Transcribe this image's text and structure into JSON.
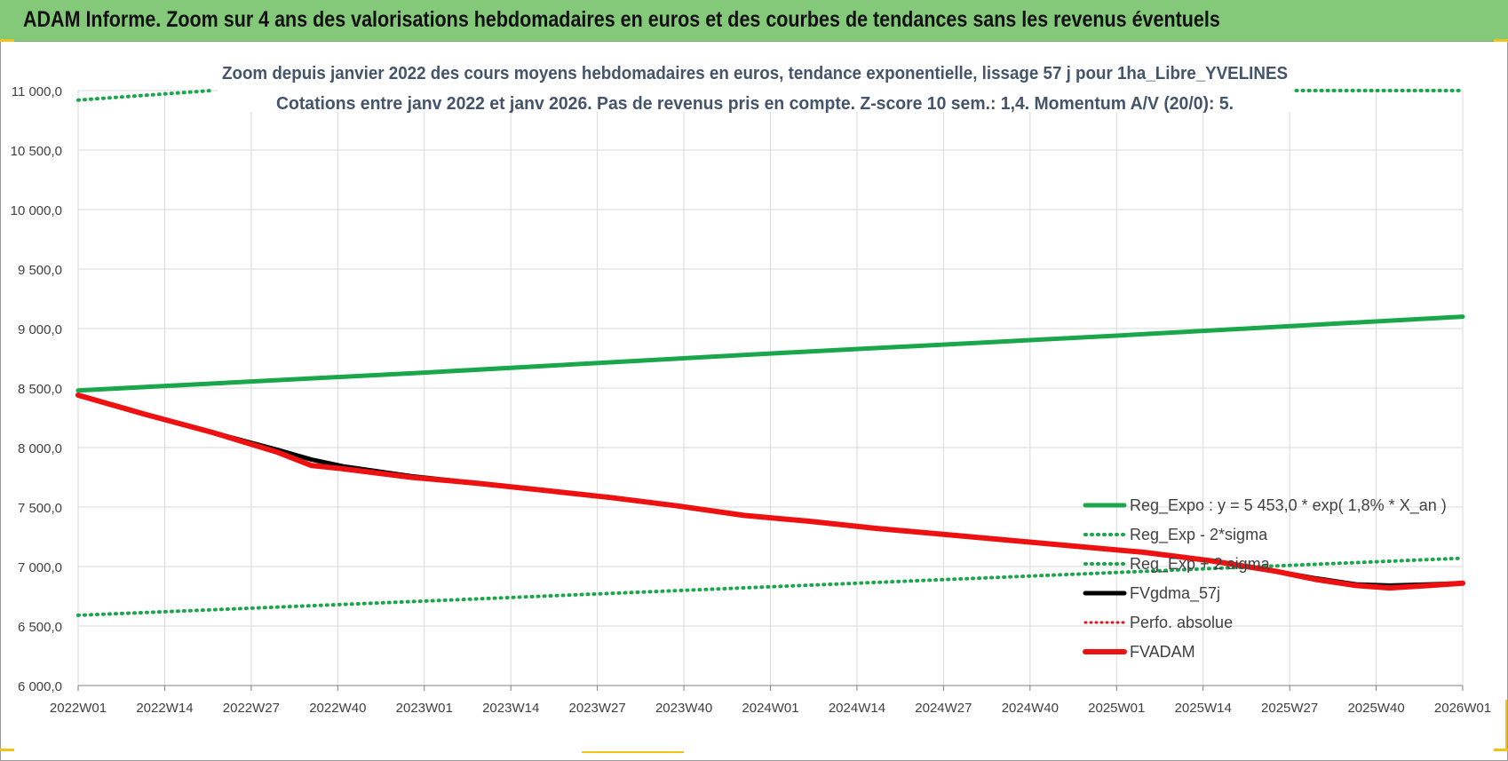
{
  "banner": {
    "title": "ADAM Informe. Zoom sur 4 ans des valorisations hebdomadaires en euros et des courbes de tendances sans les revenus éventuels"
  },
  "colors": {
    "banner": "#84c97a",
    "reg_expo": "#1aa64a",
    "fvgdma": "#000000",
    "fvadam": "#ee1111",
    "perfo": "#ee1111",
    "grid": "#d9d9d9",
    "accent": "#f3c219"
  },
  "chart_data": {
    "type": "line",
    "title_lines": [
      "Zoom depuis janvier 2022 des cours moyens hebdomadaires en euros, tendance exponentielle, lissage 57 j pour 1ha_Libre_YVELINES",
      "Cotations entre janv 2022 et janv 2026. Pas de revenus pris en compte. Z-score 10 sem.: 1,4. Momentum A/V (20/0): 5."
    ],
    "x_ticks": [
      "2022W01",
      "2022W14",
      "2022W27",
      "2022W40",
      "2023W01",
      "2023W14",
      "2023W27",
      "2023W40",
      "2024W01",
      "2024W14",
      "2024W27",
      "2024W40",
      "2025W01",
      "2025W14",
      "2025W27",
      "2025W40",
      "2026W01"
    ],
    "y_ticks": [
      "6 000,0",
      "6 500,0",
      "7 000,0",
      "7 500,0",
      "8 000,0",
      "8 500,0",
      "9 000,0",
      "9 500,0",
      "10 000,0",
      "10 500,0",
      "11 000,0"
    ],
    "ylim": [
      6000,
      11000
    ],
    "x_range_weeks": [
      0,
      208
    ],
    "grid": true,
    "legend_position": "bottom-right",
    "series": [
      {
        "name": "Reg_Expo : y = 5 453,0 * exp( 1,8% *  X_an )",
        "style": "solid",
        "points": [
          [
            0,
            8480
          ],
          [
            52,
            8630
          ],
          [
            104,
            8790
          ],
          [
            156,
            8940
          ],
          [
            208,
            9100
          ]
        ]
      },
      {
        "name": "Reg_Exp - 2*sigma",
        "style": "dotted",
        "points": [
          [
            0,
            6590
          ],
          [
            52,
            6710
          ],
          [
            104,
            6830
          ],
          [
            156,
            6950
          ],
          [
            208,
            7070
          ]
        ]
      },
      {
        "name": "Reg_Exp + 2 sigma",
        "style": "dotted",
        "points": [
          [
            0,
            10920
          ],
          [
            20,
            11000
          ]
        ],
        "points_2": [
          [
            183,
            11000
          ],
          [
            208,
            11000
          ]
        ]
      },
      {
        "name": "FVgdma_57j",
        "style": "solid",
        "points": [
          [
            0,
            8440
          ],
          [
            10,
            8280
          ],
          [
            20,
            8130
          ],
          [
            30,
            7980
          ],
          [
            35,
            7900
          ],
          [
            40,
            7840
          ],
          [
            50,
            7760
          ],
          [
            60,
            7700
          ],
          [
            70,
            7640
          ],
          [
            80,
            7580
          ],
          [
            90,
            7510
          ],
          [
            100,
            7430
          ],
          [
            110,
            7380
          ],
          [
            120,
            7320
          ],
          [
            130,
            7270
          ],
          [
            140,
            7220
          ],
          [
            150,
            7170
          ],
          [
            160,
            7120
          ],
          [
            170,
            7050
          ],
          [
            180,
            6960
          ],
          [
            186,
            6900
          ],
          [
            192,
            6850
          ],
          [
            197,
            6840
          ],
          [
            203,
            6850
          ],
          [
            208,
            6860
          ]
        ]
      },
      {
        "name": "Perfo. absolue",
        "style": "dotted",
        "points": []
      },
      {
        "name": "FVADAM",
        "style": "solid",
        "points": [
          [
            0,
            8440
          ],
          [
            10,
            8280
          ],
          [
            20,
            8130
          ],
          [
            30,
            7960
          ],
          [
            35,
            7850
          ],
          [
            40,
            7820
          ],
          [
            50,
            7750
          ],
          [
            60,
            7700
          ],
          [
            70,
            7640
          ],
          [
            80,
            7580
          ],
          [
            90,
            7510
          ],
          [
            100,
            7430
          ],
          [
            110,
            7380
          ],
          [
            120,
            7320
          ],
          [
            130,
            7270
          ],
          [
            140,
            7220
          ],
          [
            150,
            7170
          ],
          [
            160,
            7120
          ],
          [
            170,
            7050
          ],
          [
            180,
            6960
          ],
          [
            186,
            6890
          ],
          [
            192,
            6840
          ],
          [
            197,
            6820
          ],
          [
            203,
            6840
          ],
          [
            208,
            6860
          ]
        ]
      }
    ]
  }
}
